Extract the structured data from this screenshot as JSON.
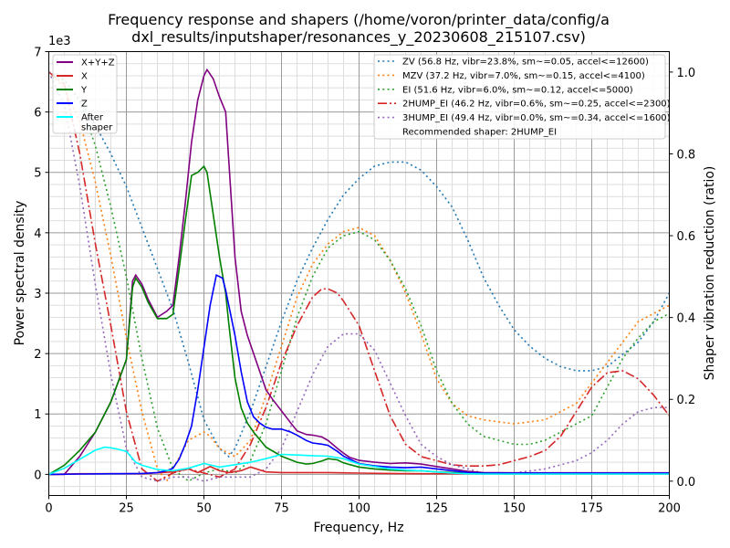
{
  "chart_data": {
    "type": "line",
    "title_line1": "Frequency response and shapers (/home/voron/printer_data/config/a",
    "title_line2": "dxl_results/inputshaper/resonances_y_20230608_215107.csv)",
    "xlabel": "Frequency, Hz",
    "ylabel": "Power spectral density",
    "y2label": "Shaper vibration reduction (ratio)",
    "y_offset_label": "1e3",
    "xlim": [
      0,
      200
    ],
    "ylim": [
      -350,
      7000
    ],
    "y2lim": [
      -0.035,
      1.05
    ],
    "x_ticks": [
      "0",
      "25",
      "50",
      "75",
      "100",
      "125",
      "150",
      "175",
      "200"
    ],
    "y_ticks": [
      "0",
      "1",
      "2",
      "3",
      "4",
      "5",
      "6",
      "7"
    ],
    "y2_ticks": [
      "0.0",
      "0.2",
      "0.4",
      "0.6",
      "0.8",
      "1.0"
    ],
    "grid": true,
    "legend_left_position": "top-left",
    "legend_right_position": "top-right",
    "psd_series": [
      {
        "name": "X+Y+Z",
        "color": "#800080",
        "x": [
          0,
          5,
          10,
          15,
          20,
          25,
          27,
          28,
          30,
          32,
          35,
          38,
          40,
          42,
          44,
          46,
          48,
          50,
          51,
          53,
          55,
          57,
          58,
          60,
          62,
          64,
          66,
          68,
          70,
          72,
          75,
          78,
          80,
          83,
          85,
          88,
          90,
          93,
          95,
          97,
          100,
          105,
          110,
          115,
          120,
          125,
          130,
          135,
          140,
          150,
          160,
          170,
          180,
          190,
          200
        ],
        "y": [
          0,
          0,
          300,
          700,
          1200,
          1900,
          3200,
          3300,
          3150,
          2900,
          2600,
          2700,
          2800,
          3600,
          4500,
          5500,
          6200,
          6600,
          6700,
          6550,
          6250,
          6000,
          5200,
          3600,
          2700,
          2300,
          2000,
          1700,
          1400,
          1250,
          1050,
          850,
          720,
          660,
          650,
          620,
          560,
          430,
          350,
          280,
          230,
          200,
          180,
          190,
          170,
          130,
          90,
          50,
          30,
          25,
          25,
          25,
          25,
          25,
          25
        ]
      },
      {
        "name": "X",
        "color": "#d62728",
        "x": [
          0,
          10,
          20,
          30,
          40,
          45,
          48,
          50,
          52,
          55,
          58,
          62,
          65,
          70,
          75,
          80,
          90,
          100,
          110,
          120,
          130,
          140,
          150,
          160,
          170,
          180,
          190,
          200
        ],
        "y": [
          0,
          10,
          10,
          10,
          40,
          90,
          30,
          80,
          130,
          60,
          30,
          60,
          120,
          40,
          30,
          30,
          30,
          20,
          15,
          10,
          10,
          10,
          10,
          10,
          10,
          10,
          10,
          10
        ]
      },
      {
        "name": "Y",
        "color": "#008000",
        "x": [
          0,
          5,
          10,
          15,
          20,
          25,
          27,
          28,
          30,
          32,
          35,
          38,
          40,
          42,
          44,
          46,
          48,
          50,
          51,
          53,
          55,
          57,
          58,
          60,
          62,
          64,
          66,
          70,
          75,
          80,
          83,
          85,
          88,
          90,
          93,
          95,
          100,
          105,
          110,
          115,
          120,
          125,
          130,
          140,
          150,
          160,
          170,
          180,
          190,
          200
        ],
        "y": [
          0,
          150,
          400,
          700,
          1200,
          1900,
          3100,
          3250,
          3100,
          2850,
          2580,
          2580,
          2650,
          3400,
          4200,
          4950,
          5000,
          5100,
          5000,
          4300,
          3600,
          3000,
          2500,
          1600,
          1100,
          850,
          700,
          450,
          300,
          200,
          170,
          180,
          220,
          260,
          240,
          190,
          120,
          90,
          70,
          60,
          60,
          40,
          30,
          20,
          15,
          15,
          15,
          15,
          15,
          15
        ]
      },
      {
        "name": "Z",
        "color": "#0000ff",
        "x": [
          0,
          10,
          20,
          30,
          35,
          38,
          40,
          42,
          44,
          46,
          48,
          50,
          52,
          54,
          56,
          57,
          58,
          60,
          62,
          64,
          66,
          68,
          70,
          72,
          75,
          78,
          80,
          83,
          85,
          88,
          90,
          93,
          95,
          100,
          105,
          110,
          115,
          120,
          125,
          130,
          135,
          140,
          150,
          160,
          170,
          180,
          190,
          200
        ],
        "y": [
          0,
          5,
          10,
          15,
          30,
          60,
          100,
          250,
          500,
          800,
          1400,
          2100,
          2800,
          3300,
          3250,
          3050,
          2800,
          2300,
          1700,
          1200,
          950,
          850,
          780,
          750,
          750,
          700,
          650,
          560,
          520,
          500,
          480,
          380,
          300,
          180,
          140,
          120,
          110,
          120,
          90,
          60,
          30,
          20,
          20,
          20,
          20,
          20,
          20,
          20
        ]
      },
      {
        "name": "After\nshaper",
        "color": "#00ffff",
        "x": [
          0,
          5,
          10,
          15,
          18,
          20,
          22,
          25,
          28,
          30,
          35,
          40,
          45,
          50,
          55,
          60,
          65,
          70,
          75,
          80,
          85,
          90,
          95,
          100,
          105,
          110,
          115,
          120,
          125,
          130,
          135,
          140,
          150,
          160,
          170,
          180,
          190,
          200
        ],
        "y": [
          0,
          100,
          250,
          400,
          450,
          440,
          420,
          380,
          200,
          150,
          80,
          60,
          100,
          180,
          120,
          160,
          200,
          260,
          330,
          320,
          310,
          300,
          260,
          170,
          130,
          90,
          70,
          60,
          40,
          20,
          10,
          5,
          5,
          5,
          5,
          5,
          5,
          5
        ]
      }
    ],
    "shaper_series": [
      {
        "name": "ZV (56.8 Hz, vibr=23.8%, sm~=0.05, accel<=12600)",
        "color": "#1f77b4",
        "style": "dotted",
        "x": [
          0,
          5,
          10,
          15,
          20,
          25,
          30,
          35,
          40,
          45,
          50,
          55,
          58,
          60,
          65,
          70,
          75,
          80,
          85,
          90,
          95,
          100,
          105,
          110,
          115,
          120,
          125,
          130,
          135,
          140,
          145,
          150,
          155,
          160,
          165,
          170,
          175,
          180,
          185,
          190,
          195,
          200
        ],
        "y": [
          1.0,
          0.98,
          0.93,
          0.87,
          0.8,
          0.72,
          0.62,
          0.52,
          0.42,
          0.29,
          0.15,
          0.08,
          0.06,
          0.08,
          0.17,
          0.28,
          0.39,
          0.49,
          0.57,
          0.64,
          0.7,
          0.74,
          0.77,
          0.78,
          0.78,
          0.76,
          0.72,
          0.67,
          0.59,
          0.5,
          0.43,
          0.37,
          0.33,
          0.3,
          0.28,
          0.27,
          0.27,
          0.28,
          0.31,
          0.34,
          0.39,
          0.46
        ]
      },
      {
        "name": "MZV (37.2 Hz, vibr=7.0%, sm~=0.15, accel<=4100)",
        "color": "#ff7f0e",
        "style": "dotted",
        "x": [
          0,
          5,
          10,
          15,
          20,
          25,
          30,
          35,
          38,
          40,
          45,
          50,
          52,
          55,
          60,
          65,
          70,
          75,
          80,
          85,
          90,
          95,
          100,
          105,
          110,
          115,
          120,
          125,
          130,
          135,
          140,
          150,
          160,
          170,
          180,
          190,
          200
        ],
        "y": [
          1.0,
          0.96,
          0.88,
          0.73,
          0.55,
          0.35,
          0.17,
          0.03,
          0.0,
          0.03,
          0.1,
          0.12,
          0.11,
          0.08,
          0.06,
          0.1,
          0.21,
          0.33,
          0.45,
          0.53,
          0.58,
          0.61,
          0.62,
          0.6,
          0.54,
          0.46,
          0.36,
          0.25,
          0.19,
          0.16,
          0.15,
          0.14,
          0.15,
          0.19,
          0.29,
          0.39,
          0.43
        ]
      },
      {
        "name": "EI (51.6 Hz, vibr=6.0%, sm~=0.12, accel<=5000)",
        "color": "#2ca02c",
        "style": "dotted",
        "x": [
          0,
          5,
          10,
          15,
          20,
          25,
          30,
          35,
          40,
          45,
          50,
          55,
          60,
          65,
          70,
          75,
          80,
          85,
          90,
          95,
          100,
          105,
          110,
          115,
          120,
          125,
          130,
          135,
          140,
          150,
          155,
          160,
          170,
          175,
          180,
          185,
          190,
          195,
          200
        ],
        "y": [
          1.0,
          0.98,
          0.93,
          0.82,
          0.67,
          0.5,
          0.3,
          0.13,
          0.03,
          0.0,
          0.02,
          0.03,
          0.02,
          0.05,
          0.14,
          0.27,
          0.4,
          0.5,
          0.57,
          0.6,
          0.61,
          0.59,
          0.54,
          0.47,
          0.38,
          0.27,
          0.19,
          0.14,
          0.11,
          0.09,
          0.09,
          0.1,
          0.14,
          0.16,
          0.23,
          0.3,
          0.35,
          0.39,
          0.41
        ]
      },
      {
        "name": "2HUMP_EI (46.2 Hz, vibr=0.6%, sm~=0.25, accel<=2300)",
        "color": "#d62728",
        "style": "dashdot",
        "x": [
          0,
          5,
          10,
          15,
          20,
          25,
          30,
          35,
          40,
          45,
          50,
          55,
          60,
          65,
          70,
          75,
          80,
          85,
          88,
          90,
          93,
          95,
          100,
          105,
          110,
          115,
          120,
          125,
          130,
          135,
          140,
          145,
          150,
          155,
          160,
          165,
          170,
          175,
          180,
          185,
          190,
          195,
          200
        ],
        "y": [
          1.0,
          0.97,
          0.8,
          0.58,
          0.38,
          0.17,
          0.03,
          0.0,
          0.02,
          0.03,
          0.02,
          0.01,
          0.03,
          0.09,
          0.18,
          0.29,
          0.38,
          0.45,
          0.47,
          0.47,
          0.46,
          0.44,
          0.38,
          0.27,
          0.16,
          0.09,
          0.06,
          0.05,
          0.04,
          0.037,
          0.037,
          0.04,
          0.05,
          0.06,
          0.075,
          0.11,
          0.17,
          0.23,
          0.265,
          0.27,
          0.25,
          0.21,
          0.16
        ]
      },
      {
        "name": "3HUMP_EI (49.4 Hz, vibr=0.0%, sm~=0.34, accel<=1600)",
        "color": "#9467bd",
        "style": "dotted",
        "x": [
          0,
          5,
          10,
          15,
          20,
          25,
          30,
          35,
          40,
          45,
          50,
          55,
          60,
          65,
          70,
          75,
          80,
          85,
          90,
          95,
          100,
          105,
          110,
          115,
          120,
          125,
          130,
          135,
          140,
          150,
          160,
          170,
          175,
          180,
          185,
          190,
          195,
          200
        ],
        "y": [
          1.0,
          0.92,
          0.72,
          0.48,
          0.26,
          0.08,
          0.01,
          0.0,
          0.01,
          0.01,
          0.0,
          0.01,
          0.01,
          0.01,
          0.03,
          0.08,
          0.17,
          0.26,
          0.33,
          0.36,
          0.36,
          0.32,
          0.24,
          0.16,
          0.09,
          0.06,
          0.04,
          0.03,
          0.02,
          0.02,
          0.03,
          0.05,
          0.07,
          0.1,
          0.14,
          0.17,
          0.18,
          0.18
        ]
      }
    ],
    "recommendation": "Recommended shaper: 2HUMP_EI"
  }
}
